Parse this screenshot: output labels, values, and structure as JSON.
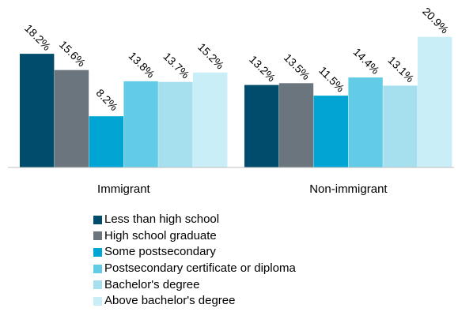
{
  "chart_data": {
    "type": "bar",
    "categories": [
      "Immigrant",
      "Non-immigrant"
    ],
    "series": [
      {
        "name": "Less than high school",
        "color": "#004c6d",
        "values": [
          18.2,
          13.2
        ]
      },
      {
        "name": "High school graduate",
        "color": "#6b757e",
        "values": [
          15.6,
          13.5
        ]
      },
      {
        "name": "Some postsecondary",
        "color": "#00a5d3",
        "values": [
          8.2,
          11.5
        ]
      },
      {
        "name": "Postsecondary certificate or diploma",
        "color": "#62cbe5",
        "values": [
          13.8,
          14.4
        ]
      },
      {
        "name": "Bachelor's degree",
        "color": "#a6e0ee",
        "values": [
          13.7,
          13.1
        ]
      },
      {
        "name": "Above bachelor's degree",
        "color": "#c9eef8",
        "values": [
          15.2,
          20.9
        ]
      }
    ],
    "value_suffix": "%",
    "ylim": [
      0,
      21.5
    ],
    "grid": false,
    "legend_position": "bottom"
  }
}
